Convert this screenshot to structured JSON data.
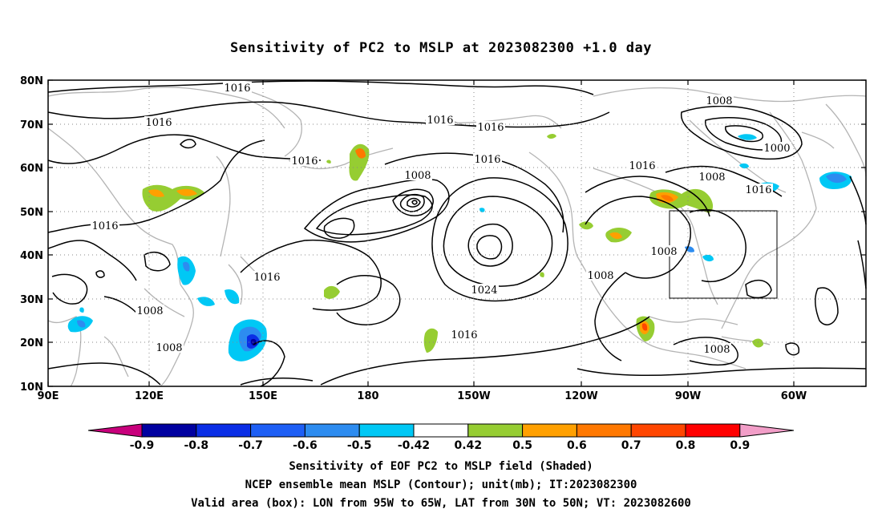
{
  "title": "Sensitivity of PC2 to MSLP at 2023082300 +1.0 day",
  "lat_labels": [
    "80N",
    "70N",
    "60N",
    "50N",
    "40N",
    "30N",
    "20N",
    "10N"
  ],
  "lon_labels": [
    "90E",
    "120E",
    "150E",
    "180",
    "150W",
    "120W",
    "90W",
    "60W"
  ],
  "contour_labels": [
    "1016",
    "1016",
    "1016",
    "1016",
    "1016",
    "1016",
    "1008",
    "1016",
    "1016",
    "1008",
    "1000",
    "1008",
    "1016",
    "1008",
    "1016",
    "1024",
    "1008",
    "1016",
    "1008",
    "1008",
    "1008"
  ],
  "colorbar": {
    "labels": [
      "-0.9",
      "-0.8",
      "-0.7",
      "-0.6",
      "-0.5",
      "-0.42",
      "0.42",
      "0.5",
      "0.6",
      "0.7",
      "0.8",
      "0.9"
    ],
    "colors": [
      "#0000a0",
      "#0a2ee6",
      "#1e5ff5",
      "#2d8cf0",
      "#00c8f5",
      "#ffffff",
      "#96cd32",
      "#ffa000",
      "#ff7800",
      "#ff4600",
      "#ff0000"
    ],
    "left_arrow_color": "#c8007c",
    "right_arrow_color": "#f29ec8"
  },
  "captions": {
    "line1": "Sensitivity of EOF PC2 to MSLP field (Shaded)",
    "line2": "NCEP ensemble mean MSLP (Contour); unit(mb); IT:2023082300",
    "line3": "Valid area (box): LON from 95W to 65W, LAT from 30N to 50N; VT: 2023082600"
  }
}
